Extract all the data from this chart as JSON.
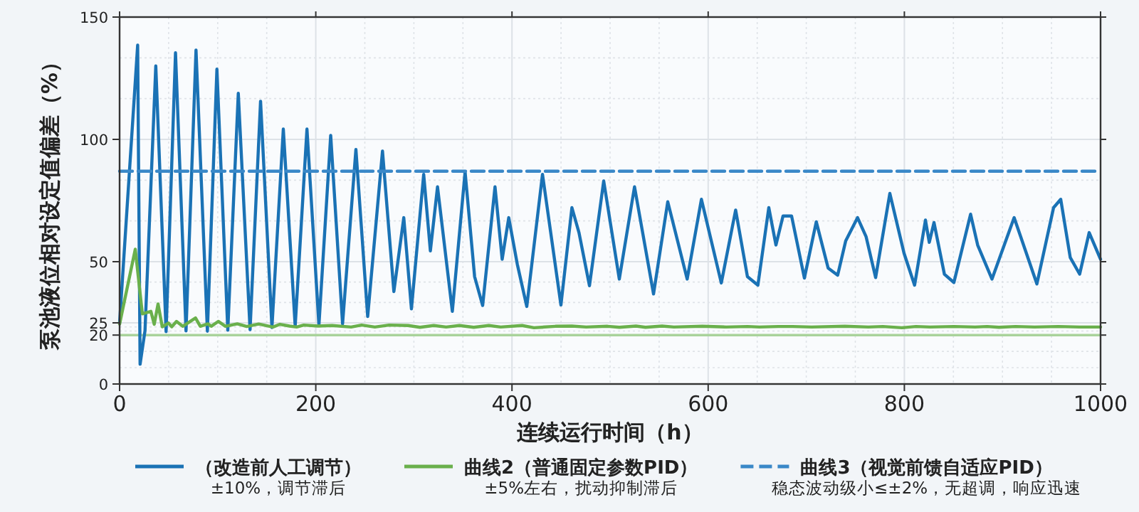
{
  "chart_data": {
    "type": "line",
    "xlabel": "连续运行时间（h）",
    "ylabel": "泵池液位相对设定值偏差（%）",
    "xlim": [
      0,
      1000
    ],
    "xticks": [
      0,
      200,
      400,
      600,
      800,
      1000
    ],
    "ylim": [
      0,
      150
    ],
    "yticks": [
      0,
      20,
      25,
      50,
      100,
      150
    ],
    "grid": true,
    "legend": "bottom",
    "line_style": "solid",
    "ref_lines": [
      {
        "axis": "y",
        "value": 20,
        "color": "#a9d39b"
      }
    ],
    "annotations": [
      "±10%，调节滞后",
      "±5%左右，扰动抑制滞后",
      "稳态波动级小≤±2%，无超调，响应迅速"
    ],
    "series": [
      {
        "name": "（改造前人工调节）",
        "color": "#1a72b5",
        "x": [
          0,
          18.4,
          20.9,
          25.9,
          36.9,
          47.4,
          57,
          67.7,
          77.9,
          89.5,
          99.2,
          110.3,
          121,
          133,
          143.7,
          155.3,
          166.9,
          179,
          191,
          203.2,
          215.2,
          227.3,
          240.9,
          252.9,
          268,
          279.6,
          289.7,
          297.5,
          310,
          316.8,
          324.1,
          339.2,
          352.2,
          361.9,
          370.1,
          382.7,
          390,
          396.7,
          405.4,
          415.1,
          431.1,
          449.9,
          461.1,
          468.3,
          479,
          493.5,
          509.4,
          524.9,
          544.3,
          558.8,
          578.6,
          593.1,
          613.4,
          628,
          640,
          650.7,
          661.8,
          669.1,
          676.3,
          685,
          698.1,
          710.2,
          722.3,
          732,
          740.2,
          752.3,
          761,
          770.7,
          785.2,
          799.7,
          810.4,
          821.5,
          825.4,
          830.2,
          840.8,
          850.5,
          867.5,
          874.7,
          889.3,
          911.9,
          935.1,
          952.1,
          959.4,
          969.1,
          978.7,
          988.4,
          1000
        ],
        "values": [
          25,
          138.5,
          8.1,
          21.8,
          130,
          21.4,
          135.4,
          21.7,
          136.5,
          21.6,
          128.7,
          22,
          118.8,
          22.2,
          115.6,
          23.1,
          104.2,
          23.7,
          104.2,
          24,
          101.6,
          24.6,
          95.9,
          27.6,
          95.2,
          37.8,
          68,
          30.7,
          85.7,
          54.4,
          80.6,
          29.7,
          86.7,
          43.9,
          32.1,
          80.6,
          51,
          68,
          49,
          31.7,
          85.7,
          32.3,
          72.1,
          61.9,
          40.2,
          83,
          42.9,
          80.6,
          36.8,
          74.5,
          42.9,
          75.5,
          41.3,
          71.1,
          43.9,
          40.4,
          72.1,
          56.8,
          68.7,
          68.7,
          43.3,
          66.3,
          47.4,
          44.5,
          58.5,
          68,
          60.2,
          43.5,
          77.9,
          53.4,
          40.4,
          67,
          57.9,
          66,
          44.9,
          41.5,
          69.4,
          56.8,
          42.9,
          68,
          40.9,
          72.1,
          75.5,
          51.7,
          44.9,
          61.9,
          51
        ]
      },
      {
        "name": "曲线2（普通固定参数PID）",
        "color": "#6ab04c",
        "x": [
          0,
          16,
          23.2,
          31.9,
          35.3,
          39.2,
          43.5,
          49.8,
          53.2,
          58,
          64.4,
          77.4,
          82.3,
          90,
          93.4,
          100.6,
          107.9,
          120,
          129.7,
          141.8,
          156.3,
          163.5,
          173.2,
          180.5,
          187.7,
          202.2,
          216.7,
          236,
          246.7,
          260.2,
          274.7,
          294.1,
          306.2,
          320.2,
          332.9,
          346.4,
          361,
          376.4,
          388.5,
          410.3,
          422.4,
          444.2,
          461.1,
          475.6,
          497.4,
          509.5,
          526.4,
          536.1,
          553,
          565.1,
          594.1,
          618.3,
          640.1,
          652.2,
          671.5,
          686,
          705.4,
          739.3,
          763.4,
          778,
          797.3,
          811.8,
          826.3,
          850.5,
          872.2,
          884.3,
          896.4,
          913.4,
          932.7,
          956.9,
          978.7,
          993.2,
          1000
        ],
        "values": [
          24.5,
          55.1,
          28.7,
          29.7,
          24.4,
          32.7,
          23.4,
          24.9,
          23.4,
          25.6,
          23.6,
          27,
          23.6,
          24.6,
          23.6,
          25.6,
          23.6,
          24.6,
          23.5,
          24.5,
          23.3,
          24.4,
          23.7,
          23.3,
          24.1,
          23.7,
          23.9,
          23.3,
          24.1,
          23.3,
          24.1,
          23.9,
          23.2,
          23.9,
          23.3,
          23.9,
          23.2,
          23.9,
          23.3,
          23.9,
          23,
          23.6,
          23.7,
          23.3,
          23.6,
          23.2,
          23.7,
          23.2,
          23.7,
          23.3,
          23.6,
          23.3,
          23.5,
          23.3,
          23.5,
          23.5,
          23.3,
          23.6,
          23.3,
          23.5,
          23,
          23.5,
          23.3,
          23.5,
          23.3,
          23.5,
          23.2,
          23.5,
          23.3,
          23.5,
          23.3,
          23.3,
          23.3
        ]
      },
      {
        "name": "曲线3（视觉前馈自适应PID）",
        "color": "#3a88c8",
        "line_style": "dashed",
        "x": [
          0,
          1000
        ],
        "values": [
          87,
          87
        ]
      }
    ]
  }
}
